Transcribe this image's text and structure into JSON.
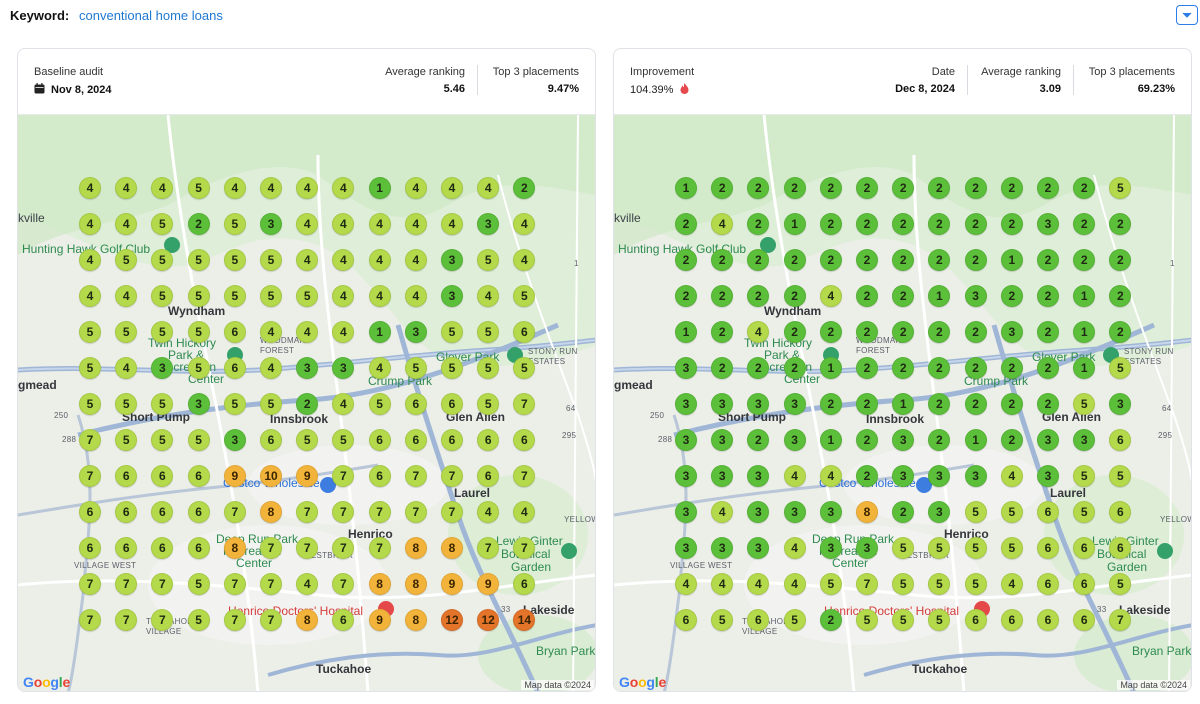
{
  "keyword": {
    "label": "Keyword:",
    "value": "conventional home loans"
  },
  "baseline": {
    "title": "Baseline audit",
    "date": "Nov 8, 2024",
    "avg_label": "Average ranking",
    "avg_value": "5.46",
    "top3_label": "Top 3 placements",
    "top3_value": "9.47%",
    "grid": [
      [
        4,
        4,
        4,
        5,
        4,
        4,
        4,
        4,
        1,
        4,
        4,
        4,
        2
      ],
      [
        4,
        4,
        5,
        2,
        5,
        3,
        4,
        4,
        4,
        4,
        4,
        3,
        4
      ],
      [
        4,
        5,
        5,
        5,
        5,
        5,
        4,
        4,
        4,
        4,
        3,
        5,
        4
      ],
      [
        4,
        4,
        5,
        5,
        5,
        5,
        5,
        4,
        4,
        4,
        3,
        4,
        5
      ],
      [
        5,
        5,
        5,
        5,
        6,
        4,
        4,
        4,
        1,
        3,
        5,
        5,
        6
      ],
      [
        5,
        4,
        3,
        5,
        6,
        4,
        3,
        3,
        4,
        5,
        5,
        5,
        5
      ],
      [
        5,
        5,
        5,
        3,
        5,
        5,
        2,
        4,
        5,
        6,
        6,
        5,
        7
      ],
      [
        7,
        5,
        5,
        5,
        3,
        6,
        5,
        5,
        6,
        6,
        6,
        6,
        6
      ],
      [
        7,
        6,
        6,
        6,
        9,
        10,
        9,
        7,
        6,
        7,
        7,
        6,
        7
      ],
      [
        6,
        6,
        6,
        6,
        7,
        8,
        7,
        7,
        7,
        7,
        7,
        4,
        4
      ],
      [
        6,
        6,
        6,
        6,
        8,
        7,
        7,
        7,
        7,
        8,
        8,
        7,
        7
      ],
      [
        7,
        7,
        7,
        5,
        7,
        7,
        4,
        7,
        8,
        8,
        9,
        9,
        6
      ],
      [
        7,
        7,
        7,
        5,
        7,
        7,
        8,
        6,
        9,
        8,
        12,
        12,
        14
      ]
    ]
  },
  "followup": {
    "title": "Improvement",
    "improvement": "104.39%",
    "date_label": "Date",
    "date": "Dec 8, 2024",
    "avg_label": "Average ranking",
    "avg_value": "3.09",
    "top3_label": "Top 3 placements",
    "top3_value": "69.23%",
    "grid": [
      [
        1,
        2,
        2,
        2,
        2,
        2,
        2,
        2,
        2,
        2,
        2,
        2,
        5
      ],
      [
        2,
        4,
        2,
        1,
        2,
        2,
        2,
        2,
        2,
        2,
        3,
        2,
        2
      ],
      [
        2,
        2,
        2,
        2,
        2,
        2,
        2,
        2,
        2,
        1,
        2,
        2,
        2
      ],
      [
        2,
        2,
        2,
        2,
        4,
        2,
        2,
        1,
        3,
        2,
        2,
        1,
        2
      ],
      [
        1,
        2,
        4,
        2,
        2,
        2,
        2,
        2,
        2,
        3,
        2,
        1,
        2
      ],
      [
        3,
        2,
        2,
        2,
        1,
        2,
        2,
        2,
        2,
        2,
        2,
        1,
        5
      ],
      [
        3,
        3,
        3,
        3,
        2,
        2,
        1,
        2,
        2,
        2,
        2,
        5,
        3
      ],
      [
        3,
        3,
        2,
        3,
        1,
        2,
        3,
        2,
        1,
        2,
        3,
        3,
        6
      ],
      [
        3,
        3,
        3,
        4,
        4,
        2,
        3,
        3,
        3,
        4,
        3,
        5,
        5
      ],
      [
        3,
        4,
        3,
        3,
        3,
        8,
        2,
        3,
        5,
        5,
        6,
        5,
        6
      ],
      [
        3,
        3,
        3,
        4,
        3,
        3,
        5,
        5,
        5,
        5,
        6,
        6,
        6
      ],
      [
        4,
        4,
        4,
        4,
        5,
        7,
        5,
        5,
        5,
        4,
        6,
        6,
        5
      ],
      [
        6,
        5,
        6,
        5,
        2,
        5,
        5,
        5,
        6,
        6,
        6,
        6,
        7
      ]
    ]
  },
  "map_labels": [
    "kville",
    "Hunting Hawk Golf Club",
    "Wyndham",
    "Twin Hickory",
    "Park &",
    "Recreation",
    "Center",
    "gmead",
    "Short Pump",
    "Innsbrook",
    "Glen Allen",
    "Crump Park",
    "Glover Park",
    "Laurel",
    "Costco Wholesale",
    "Henrico",
    "Deep Run Park",
    "Recreation",
    "Center",
    "Lewis Ginter",
    "Botanical",
    "Garden",
    "Henrico Doctors' Hospital",
    "Lakeside",
    "Tuckahoe",
    "Bryan Park",
    "STONY RUN",
    "ESTATES",
    "WOODMAN",
    "FOREST",
    "VILLAGE WEST",
    "WESTBRIAR",
    "TUCKAHOE",
    "VILLAGE",
    "YELLOW",
    "Map data ©2024",
    "250",
    "288",
    "295",
    "64",
    "1",
    "33"
  ],
  "colors": {
    "accent": "#1f78d1",
    "rank_1_3": "#5cbf3a",
    "rank_4_7": "#b4d94a",
    "rank_8_10": "#f2b33a",
    "rank_11_plus": "#e3742a"
  }
}
